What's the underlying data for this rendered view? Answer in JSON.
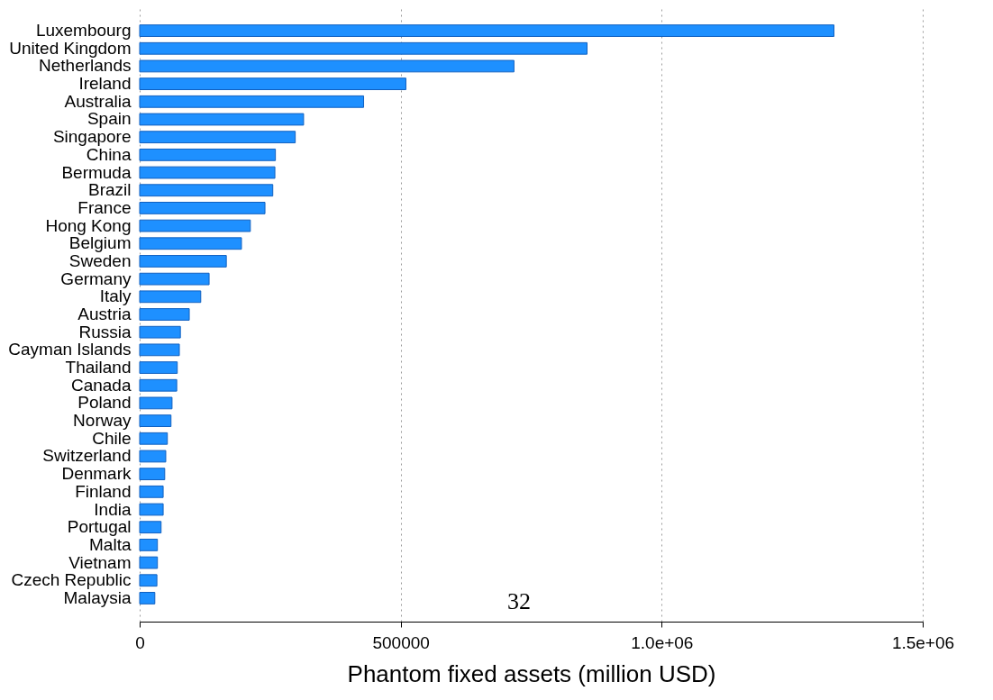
{
  "chart_data": {
    "type": "bar",
    "orientation": "horizontal",
    "xlabel": "Phantom fixed assets (million USD)",
    "categories": [
      "Luxembourg",
      "United Kingdom",
      "Netherlands",
      "Ireland",
      "Australia",
      "Spain",
      "Singapore",
      "China",
      "Bermuda",
      "Brazil",
      "France",
      "Hong Kong",
      "Belgium",
      "Sweden",
      "Germany",
      "Italy",
      "Austria",
      "Russia",
      "Cayman Islands",
      "Thailand",
      "Canada",
      "Poland",
      "Norway",
      "Chile",
      "Switzerland",
      "Denmark",
      "Finland",
      "India",
      "Portugal",
      "Malta",
      "Vietnam",
      "Czech Republic",
      "Malaysia"
    ],
    "values": [
      1330000,
      857000,
      717000,
      510000,
      429000,
      314000,
      298000,
      260000,
      259000,
      255000,
      240000,
      212000,
      195000,
      166000,
      133000,
      117000,
      95000,
      78000,
      76000,
      72000,
      71000,
      62000,
      60000,
      53000,
      50000,
      48000,
      45000,
      45000,
      41000,
      34000,
      34000,
      33000,
      29000
    ],
    "color": "#1e90ff",
    "xlim": [
      0,
      1500000
    ],
    "xticks": [
      0,
      500000,
      {
        "value": 1000000,
        "label": "1.0e+06"
      },
      {
        "value": 1500000,
        "label": "1.5e+06"
      }
    ],
    "grid": "x",
    "annotations": [
      "32"
    ]
  }
}
